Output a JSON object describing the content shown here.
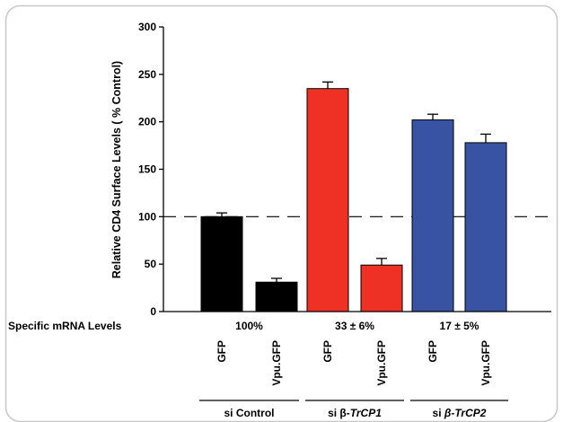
{
  "chart_data": {
    "type": "bar",
    "ylabel": "Relative CD4 Surface Levels ( % Control)",
    "ylim": [
      0,
      300
    ],
    "yticks": [
      "0",
      "50",
      "100",
      "150",
      "200",
      "250",
      "300"
    ],
    "reference_line": 100,
    "categories": [
      "GFP",
      "Vpu.GFP",
      "GFP",
      "Vpu.GFP",
      "GFP",
      "Vpu.GFP"
    ],
    "values": [
      100,
      31,
      235,
      49,
      202,
      178
    ],
    "errors": [
      4,
      4,
      7,
      7,
      6,
      9
    ],
    "colors": [
      "#000000",
      "#000000",
      "#ee3124",
      "#ee3124",
      "#3953a4",
      "#3953a4"
    ],
    "mrna_row_label": "Specific mRNA Levels",
    "groups": [
      {
        "label_prefix": "si ",
        "label_name": "Control",
        "mrna": "100%"
      },
      {
        "label_prefix": "si β-",
        "label_name": "TrCP1",
        "mrna": "33 ± 6%"
      },
      {
        "label_prefix": "si ",
        "label_name": "β-TrCP2",
        "mrna": "17 ± 5%"
      }
    ]
  }
}
